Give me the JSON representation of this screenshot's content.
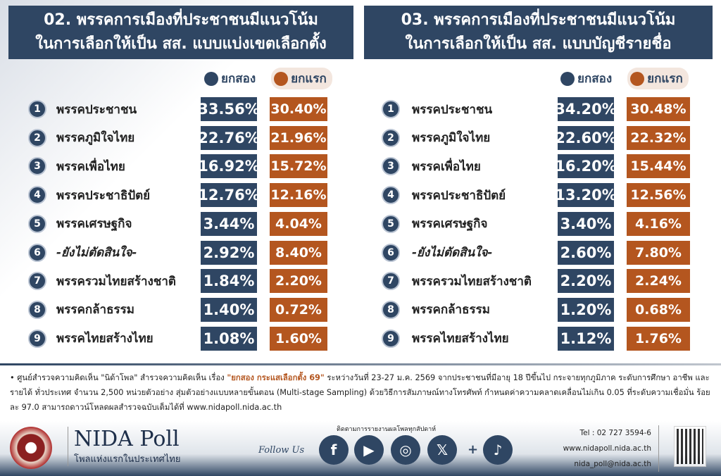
{
  "chart_data": [
    {
      "type": "table",
      "title_line1": "02. พรรคการเมืองที่ประชาชนมีแนวโน้ม",
      "title_line2": "ในการเลือกให้เป็น สส. แบบแบ่งเขตเลือกตั้ง",
      "series": [
        {
          "name": "ยกสอง",
          "color": "#2f4663",
          "values": [
            "33.56%",
            "22.76%",
            "16.92%",
            "12.76%",
            "3.44%",
            "2.92%",
            "1.84%",
            "1.40%",
            "1.08%"
          ]
        },
        {
          "name": "ยกแรก",
          "color": "#b4561f",
          "values": [
            "30.40%",
            "21.96%",
            "15.72%",
            "12.16%",
            "4.04%",
            "8.40%",
            "2.20%",
            "0.72%",
            "1.60%"
          ]
        }
      ],
      "categories": [
        "พรรคประชาชน",
        "พรรคภูมิใจไทย",
        "พรรคเพื่อไทย",
        "พรรคประชาธิปัตย์",
        "พรรคเศรษฐกิจ",
        "-ยังไม่ตัดสินใจ-",
        "พรรครวมไทยสร้างชาติ",
        "พรรคกล้าธรรม",
        "พรรคไทยสร้างไทย"
      ]
    },
    {
      "type": "table",
      "title_line1": "03. พรรคการเมืองที่ประชาชนมีแนวโน้ม",
      "title_line2": "ในการเลือกให้เป็น สส. แบบบัญชีรายชื่อ",
      "series": [
        {
          "name": "ยกสอง",
          "color": "#2f4663",
          "values": [
            "34.20%",
            "22.60%",
            "16.20%",
            "13.20%",
            "3.40%",
            "2.60%",
            "2.20%",
            "1.20%",
            "1.12%"
          ]
        },
        {
          "name": "ยกแรก",
          "color": "#b4561f",
          "values": [
            "30.48%",
            "22.32%",
            "15.44%",
            "12.56%",
            "4.16%",
            "7.80%",
            "2.24%",
            "0.68%",
            "1.76%"
          ]
        }
      ],
      "categories": [
        "พรรคประชาชน",
        "พรรคภูมิใจไทย",
        "พรรคเพื่อไทย",
        "พรรคประชาธิปัตย์",
        "พรรคเศรษฐกิจ",
        "-ยังไม่ตัดสินใจ-",
        "พรรครวมไทยสร้างชาติ",
        "พรรคกล้าธรรม",
        "พรรคไทยสร้างไทย"
      ]
    }
  ],
  "note": {
    "part1": "ศูนย์สำรวจความคิดเห็น \"นิด้าโพล\" สำรวจความคิดเห็น เรื่อง ",
    "highlight": "\"ยกสอง กระแสเลือกตั้ง 69\"",
    "part2": " ระหว่างวันที่ 23-27 ม.ค. 2569 จากประชาชนที่มีอายุ 18 ปีขึ้นไป กระจายทุกภูมิภาค ระดับการศึกษา อาชีพ และรายได้ ทั่วประเทศ จำนวน 2,500 หน่วยตัวอย่าง สุ่มตัวอย่างแบบหลายขั้นตอน (Multi-stage Sampling) ด้วยวิธีการสัมภาษณ์ทางโทรศัพท์ กำหนดค่าความคลาดเคลื่อนไม่เกิน 0.05 ที่ระดับความเชื่อมั่น ร้อยละ 97.0 สามารถดาวน์โหลดผลสำรวจฉบับเต็มได้ที่ www.nidapoll.nida.ac.th"
  },
  "footer": {
    "brand": "NIDA Poll",
    "tagline": "โพลแห่งแรกในประเทศไทย",
    "follow": "Follow Us",
    "follow_top": "ติดตามการรายงานผลโพลทุกสัปดาห์",
    "plus": "+",
    "social": [
      {
        "icon": "facebook-icon",
        "glyph": "f"
      },
      {
        "icon": "youtube-icon",
        "glyph": "▶"
      },
      {
        "icon": "instagram-icon",
        "glyph": "◎"
      },
      {
        "icon": "x-icon",
        "glyph": "𝕏"
      },
      {
        "icon": "tiktok-icon",
        "glyph": "♪"
      }
    ],
    "tel": "Tel : 02 727 3594-6",
    "web": "www.nidapoll.nida.ac.th",
    "email": "nida_poll@nida.ac.th"
  }
}
